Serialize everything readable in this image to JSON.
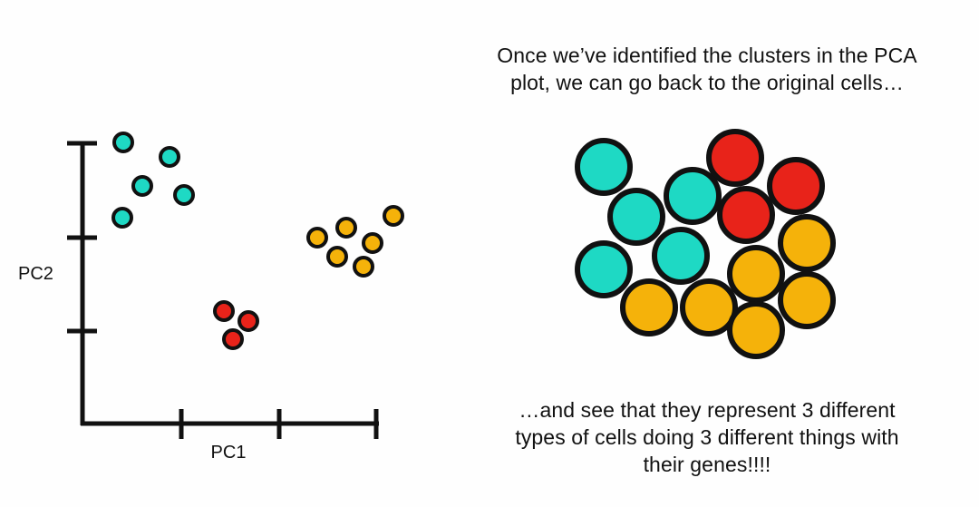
{
  "plot": {
    "x_axis_label": "PC1",
    "y_axis_label": "PC2"
  },
  "colors": {
    "teal": "#1ed9c4",
    "red": "#e8231a",
    "orange": "#f5b20a",
    "outline": "#111111"
  },
  "caption_top": {
    "line1": "Once we’ve identified the clusters in the PCA",
    "line2": "plot, we can go back to the original cells…"
  },
  "caption_bottom": {
    "line1": "…and see that they represent 3 different",
    "line2": "types of cells doing 3 different things with",
    "line3": "their genes!!!!"
  }
}
